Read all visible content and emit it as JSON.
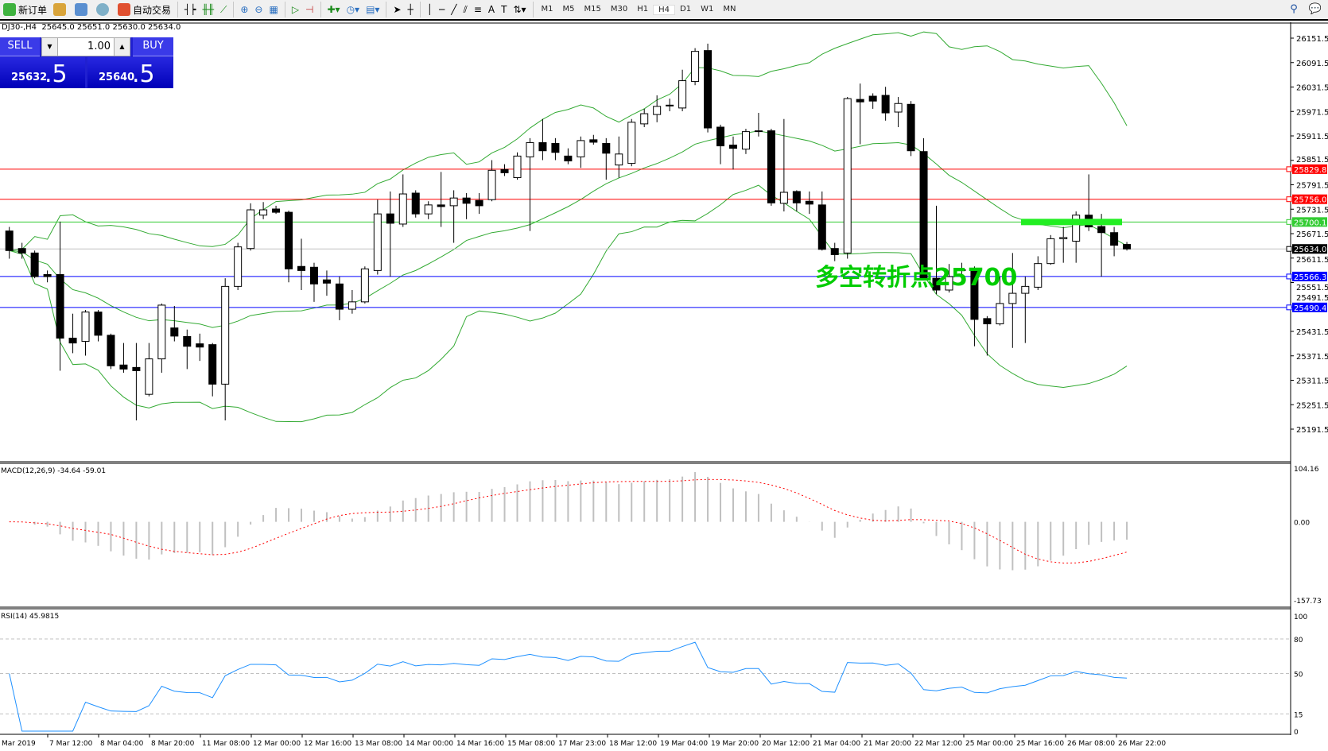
{
  "toolbar": {
    "new_order": "新订单",
    "auto_trading": "自动交易",
    "icons": [
      "new-order-icon",
      "market-watch-icon",
      "navigator-icon",
      "signals-icon",
      "auto-trading-icon",
      "bar-chart-icon",
      "candlestick-icon",
      "line-chart-icon",
      "zoom-in-icon",
      "zoom-out-icon",
      "tile-windows-icon",
      "auto-scroll-icon",
      "chart-shift-icon",
      "indicators-icon",
      "periods-icon",
      "templates-icon",
      "cursor-icon",
      "crosshair-icon",
      "vertical-line-icon",
      "horizontal-line-icon",
      "trendline-icon",
      "equidistant-channel-icon",
      "fibonacci-icon",
      "text-icon",
      "text-label-icon",
      "arrows-icon"
    ],
    "timeframes": [
      "M1",
      "M5",
      "M15",
      "M30",
      "H1",
      "H4",
      "D1",
      "W1",
      "MN"
    ],
    "active_timeframe": "H4"
  },
  "chart": {
    "title": "DJ30-,H4  25645.0 25651.0 25630.0 25634.0",
    "annotation": "多空转折点25700",
    "annotation_color": "#00cc00"
  },
  "trade": {
    "sell": "SELL",
    "buy": "BUY",
    "lot": "1.00",
    "bid_main": "25632",
    "bid_big": ".5",
    "ask_main": "25640",
    "ask_big": ".5"
  },
  "price_axis": [
    "26151.5",
    "26091.5",
    "26031.5",
    "25971.5",
    "25911.5",
    "25851.5",
    "25791.5",
    "25731.5",
    "25671.5",
    "25611.5",
    "25551.5",
    "25491.5",
    "25431.5",
    "25371.5",
    "25311.5",
    "25251.5",
    "25191.5"
  ],
  "levels": [
    {
      "price": 25829.8,
      "label": "25829.8",
      "color": "#ff0000"
    },
    {
      "price": 25756.0,
      "label": "25756.0",
      "color": "#ff0000"
    },
    {
      "price": 25700.1,
      "label": "25700.1",
      "color": "#33cc33"
    },
    {
      "price": 25634.0,
      "label": "25634.0",
      "color": "#000000",
      "line": "#c0c0c0"
    },
    {
      "price": 25566.3,
      "label": "25566.3",
      "color": "#0000ff"
    },
    {
      "price": 25490.4,
      "label": "25490.4",
      "color": "#0000ff"
    }
  ],
  "macd": {
    "label": "MACD(12,26,9) -34.64 -59.01",
    "axis": [
      "104.16",
      "0.00",
      "-157.73"
    ],
    "range": [
      -157.73,
      104.16
    ],
    "hist_color": "#c0c0c0",
    "signal_color": "#ff0000"
  },
  "rsi": {
    "label": "RSI(14) 45.9815",
    "axis": [
      "100",
      "80",
      "50",
      "15",
      "0"
    ],
    "levels": [
      80,
      50,
      15
    ],
    "color": "#1e90ff"
  },
  "time_axis": [
    "Mar 2019",
    "7 Mar 12:00",
    "8 Mar 04:00",
    "8 Mar 20:00",
    "11 Mar 08:00",
    "12 Mar 00:00",
    "12 Mar 16:00",
    "13 Mar 08:00",
    "14 Mar 00:00",
    "14 Mar 16:00",
    "15 Mar 08:00",
    "17 Mar 23:00",
    "18 Mar 12:00",
    "19 Mar 04:00",
    "19 Mar 20:00",
    "20 Mar 12:00",
    "21 Mar 04:00",
    "21 Mar 20:00",
    "22 Mar 12:00",
    "25 Mar 00:00",
    "25 Mar 16:00",
    "26 Mar 08:00",
    "26 Mar 22:00"
  ],
  "chart_data": {
    "type": "candlestick",
    "symbol": "DJ30-",
    "timeframe": "H4",
    "ylim": [
      25191.5,
      26151.5
    ],
    "bollinger_color": "#33aa33",
    "ohlc": [
      [
        25678,
        25688,
        25610,
        25630
      ],
      [
        25635,
        25649,
        25610,
        25624
      ],
      [
        25624,
        25630,
        25562,
        25566
      ],
      [
        25571,
        25581,
        25552,
        25566
      ],
      [
        25571,
        25701,
        25335,
        25415
      ],
      [
        25415,
        25475,
        25378,
        25403
      ],
      [
        25407,
        25484,
        25372,
        25479
      ],
      [
        25479,
        25484,
        25407,
        25422
      ],
      [
        25422,
        25426,
        25339,
        25347
      ],
      [
        25349,
        25403,
        25330,
        25339
      ],
      [
        25343,
        25403,
        25213,
        25335
      ],
      [
        25277,
        25403,
        25272,
        25364
      ],
      [
        25364,
        25500,
        25330,
        25496
      ],
      [
        25440,
        25494,
        25407,
        25420
      ],
      [
        25419,
        25436,
        25339,
        25395
      ],
      [
        25401,
        25426,
        25359,
        25393
      ],
      [
        25399,
        25403,
        25272,
        25302
      ],
      [
        25302,
        25562,
        25213,
        25542
      ],
      [
        25542,
        25649,
        25533,
        25639
      ],
      [
        25635,
        25746,
        25630,
        25730
      ],
      [
        25717,
        25749,
        25707,
        25730
      ],
      [
        25732,
        25740,
        25720,
        25724
      ],
      [
        25724,
        25728,
        25552,
        25585
      ],
      [
        25591,
        25659,
        25533,
        25581
      ],
      [
        25589,
        25600,
        25504,
        25548
      ],
      [
        25558,
        25581,
        25519,
        25550
      ],
      [
        25548,
        25566,
        25459,
        25486
      ],
      [
        25486,
        25533,
        25475,
        25504
      ],
      [
        25504,
        25591,
        25500,
        25585
      ],
      [
        25581,
        25755,
        25571,
        25720
      ],
      [
        25720,
        25775,
        25566,
        25697
      ],
      [
        25695,
        25817,
        25688,
        25769
      ],
      [
        25771,
        25778,
        25711,
        25720
      ],
      [
        25720,
        25751,
        25707,
        25742
      ],
      [
        25742,
        25823,
        25688,
        25738
      ],
      [
        25740,
        25778,
        25649,
        25759
      ],
      [
        25759,
        25771,
        25707,
        25746
      ],
      [
        25753,
        25771,
        25720,
        25740
      ],
      [
        25755,
        25852,
        25751,
        25827
      ],
      [
        25829,
        25842,
        25813,
        25821
      ],
      [
        25809,
        25871,
        25804,
        25862
      ],
      [
        25860,
        25906,
        25678,
        25895
      ],
      [
        25895,
        25953,
        25852,
        25875
      ],
      [
        25893,
        25906,
        25852,
        25871
      ],
      [
        25862,
        25881,
        25842,
        25850
      ],
      [
        25860,
        25910,
        25833,
        25900
      ],
      [
        25902,
        25914,
        25890,
        25896
      ],
      [
        25893,
        25906,
        25804,
        25869
      ],
      [
        25840,
        25910,
        25809,
        25867
      ],
      [
        25844,
        25953,
        25837,
        25945
      ],
      [
        25941,
        25978,
        25933,
        25966
      ],
      [
        25964,
        26011,
        25945,
        25984
      ],
      [
        25987,
        26003,
        25972,
        25985
      ],
      [
        25980,
        26074,
        25972,
        26047
      ],
      [
        26045,
        26127,
        26036,
        26119
      ],
      [
        26121,
        26138,
        25920,
        25931
      ],
      [
        25933,
        25939,
        25842,
        25887
      ],
      [
        25889,
        25910,
        25829,
        25881
      ],
      [
        25879,
        25929,
        25867,
        25922
      ],
      [
        25924,
        25968,
        25910,
        25922
      ],
      [
        25924,
        25929,
        25740,
        25747
      ],
      [
        25746,
        25953,
        25726,
        25773
      ],
      [
        25775,
        25778,
        25726,
        25747
      ],
      [
        25751,
        25775,
        25720,
        25744
      ],
      [
        25742,
        25775,
        25630,
        25633
      ],
      [
        25635,
        25649,
        25604,
        25620
      ],
      [
        25624,
        26007,
        25610,
        26003
      ],
      [
        26001,
        26040,
        25891,
        25995
      ],
      [
        26009,
        26016,
        25978,
        25997
      ],
      [
        26011,
        26032,
        25949,
        25968
      ],
      [
        25970,
        26007,
        25933,
        25991
      ],
      [
        25989,
        25997,
        25862,
        25875
      ],
      [
        25873,
        25906,
        25558,
        25562
      ],
      [
        25562,
        25740,
        25523,
        25533
      ],
      [
        25533,
        25597,
        25527,
        25566
      ],
      [
        25583,
        25600,
        25571,
        25581
      ],
      [
        25583,
        25591,
        25395,
        25461
      ],
      [
        25463,
        25469,
        25372,
        25450
      ],
      [
        25450,
        25566,
        25446,
        25500
      ],
      [
        25500,
        25624,
        25391,
        25525
      ],
      [
        25525,
        25566,
        25403,
        25542
      ],
      [
        25540,
        25616,
        25533,
        25598
      ],
      [
        25598,
        25668,
        25595,
        25659
      ],
      [
        25659,
        25688,
        25600,
        25662
      ],
      [
        25653,
        25726,
        25600,
        25717
      ],
      [
        25717,
        25817,
        25678,
        25688
      ],
      [
        25689,
        25720,
        25566,
        25674
      ],
      [
        25674,
        25688,
        25616,
        25643
      ],
      [
        25645,
        25651,
        25630,
        25634
      ]
    ]
  }
}
